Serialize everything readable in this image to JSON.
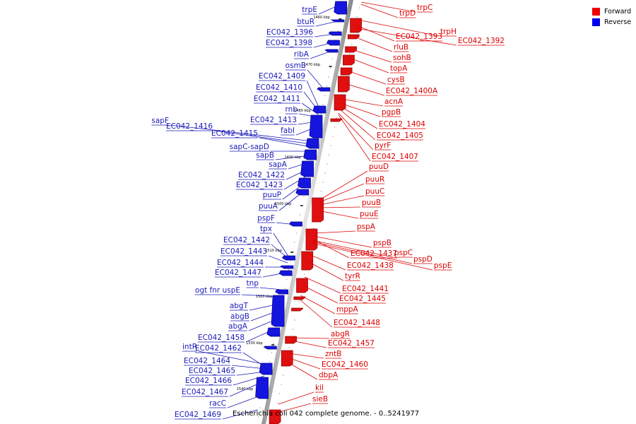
{
  "legend": {
    "forward_label": "Forward",
    "reverse_label": "Reverse",
    "forward_color": "#ee0000",
    "reverse_color": "#0000ee"
  },
  "caption": "Escherichia coli 042 complete genome. - 0..5241977",
  "ticks": [
    "1460 kbp",
    "1470 kbp",
    "1480 kbp",
    "1490 kbp",
    "1500 kbp",
    "1510 kbp",
    "1520 kbp",
    "1530 kbp",
    "1540 kbp"
  ],
  "reverse_labels": [
    "trpE",
    "btuR",
    "EC042_1396",
    "EC042_1398",
    "ribA",
    "osmB",
    "EC042_1409",
    "EC042_1410",
    "EC042_1411",
    "rnb",
    "EC042_1413",
    "fabI",
    "sapF",
    "EC042_1416",
    "EC042_1415",
    "sapC-sapD",
    "sapB",
    "sapA",
    "EC042_1422",
    "EC042_1423",
    "puuP",
    "puuA",
    "pspF",
    "tpx",
    "EC042_1442",
    "EC042_1443",
    "EC042_1444",
    "EC042_1447",
    "tnp",
    "ogt fnr uspE",
    "abgT",
    "abgB",
    "abgA",
    "EC042_1458",
    "intR",
    "EC042_1462",
    "EC042_1464",
    "EC042_1465",
    "EC042_1466",
    "EC042_1467",
    "racC",
    "EC042_1469"
  ],
  "forward_labels": [
    "trpC",
    "trpD",
    "trpH",
    "EC042_1393",
    "EC042_1392",
    "rluB",
    "sohB",
    "topA",
    "cysB",
    "EC042_1400A",
    "acnA",
    "pgpB",
    "EC042_1404",
    "EC042_1405",
    "pyrF",
    "EC042_1407",
    "puuD",
    "puuR",
    "puuC",
    "puuB",
    "puuE",
    "pspA",
    "pspB",
    "EC042_1437",
    "pspC",
    "pspD",
    "pspE",
    "EC042_1438",
    "tyrR",
    "EC042_1441",
    "EC042_1445",
    "mppA",
    "EC042_1448",
    "abgR",
    "EC042_1457",
    "zntB",
    "EC042_1460",
    "dbpA",
    "kil",
    "sieB"
  ]
}
